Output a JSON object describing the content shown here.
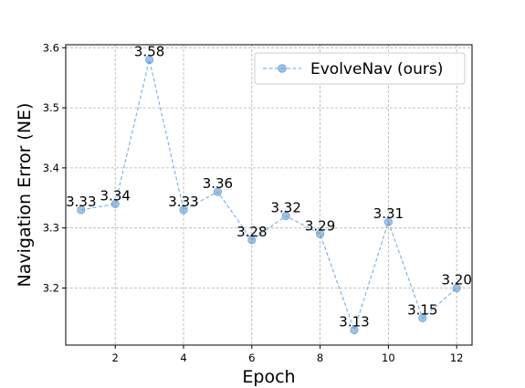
{
  "chart_data": {
    "type": "line",
    "title": "",
    "xlabel": "Epoch",
    "ylabel": "Navigation Error (NE)",
    "xlim": [
      0.55,
      12.45
    ],
    "ylim": [
      3.105,
      3.605
    ],
    "xticks": [
      2,
      4,
      6,
      8,
      10,
      12
    ],
    "yticks": [
      3.2,
      3.3,
      3.4,
      3.5,
      3.6
    ],
    "ytick_labels": [
      "3.2",
      "3.3",
      "3.4",
      "3.5",
      "3.6"
    ],
    "grid": true,
    "legend_position": "top-right",
    "series": [
      {
        "name": "EvolveNav (ours)",
        "color": "#5b9bd5",
        "line_style": "dashed",
        "marker": "circle",
        "x": [
          1,
          2,
          3,
          4,
          5,
          6,
          7,
          8,
          9,
          10,
          11,
          12
        ],
        "y": [
          3.33,
          3.34,
          3.58,
          3.33,
          3.36,
          3.28,
          3.32,
          3.29,
          3.13,
          3.31,
          3.15,
          3.2
        ],
        "labels": [
          "3.33",
          "3.34",
          "3.58",
          "3.33",
          "3.36",
          "3.28",
          "3.32",
          "3.29",
          "3.13",
          "3.31",
          "3.15",
          "3.20"
        ]
      }
    ]
  }
}
